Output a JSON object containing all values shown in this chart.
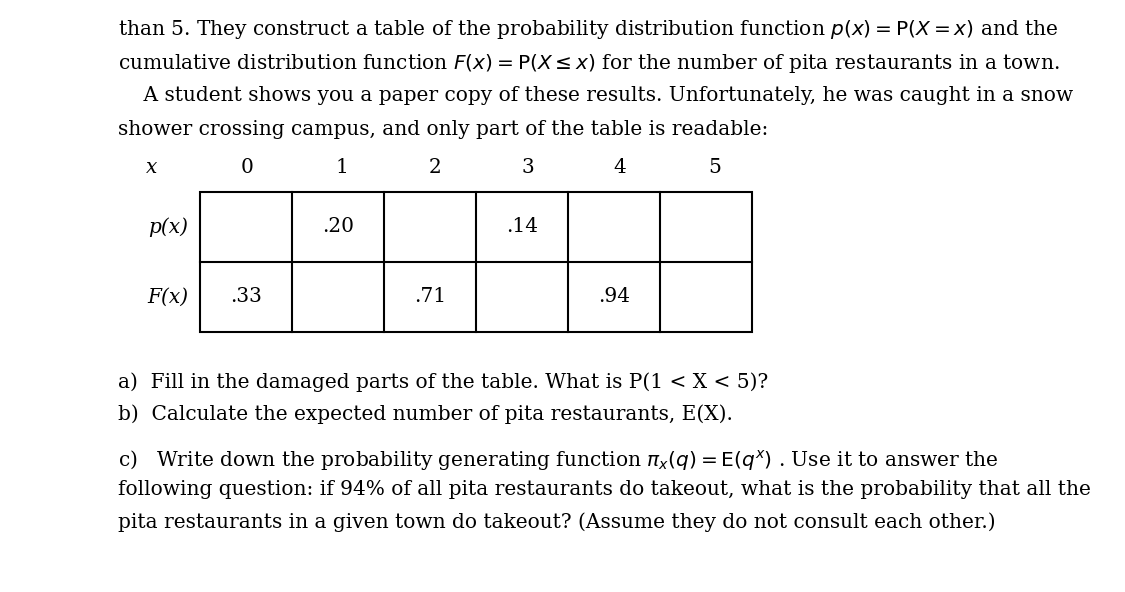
{
  "bg_color": "#ffffff",
  "text_color": "#000000",
  "font_size": 14.5,
  "line1": "than 5. They construct a table of the probability distribution function $p(x) = \\mathrm{P}(X = x)$ and the",
  "line2": "cumulative distribution function $F(x) = \\mathrm{P}(X \\leq x)$ for the number of pita restaurants in a town.",
  "line3": "    A student shows you a paper copy of these results. Unfortunately, he was caught in a snow",
  "line4": "shower crossing campus, and only part of the table is readable:",
  "header_labels": [
    "x",
    "0",
    "1",
    "2",
    "3",
    "4",
    "5"
  ],
  "row1_label": "p(x)",
  "row2_label": "F(x)",
  "row1_values": [
    "",
    ".20",
    "",
    ".14",
    "",
    ""
  ],
  "row2_values": [
    ".33",
    "",
    ".71",
    "",
    ".94",
    ""
  ],
  "qa": "a)  Fill in the damaged parts of the table. What is P(1 < X < 5)?",
  "qb": "b)  Calculate the expected number of pita restaurants, E(X).",
  "qc1": "c)   Write down the probability generating function $\\pi_x(q) = \\mathrm{E}(q^x)$ . Use it to answer the",
  "qc2": "following question: if 94% of all pita restaurants do takeout, what is the probability that all the",
  "qc3": "pita restaurants in a given town do takeout? (Assume they do not consult each other.)"
}
